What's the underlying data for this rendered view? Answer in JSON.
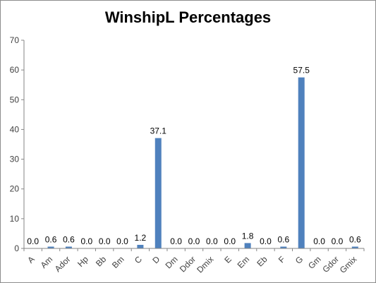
{
  "chart_data": {
    "type": "bar",
    "title": "WinshipL Percentages",
    "categories": [
      "A",
      "Am",
      "Ador",
      "Hp",
      "Bb",
      "Bm",
      "C",
      "D",
      "Dm",
      "Ddor",
      "Dmix",
      "E",
      "Em",
      "Eb",
      "F",
      "G",
      "Gm",
      "Gdor",
      "Gmix"
    ],
    "values": [
      0.0,
      0.6,
      0.6,
      0.0,
      0.0,
      0.0,
      1.2,
      37.1,
      0.0,
      0.0,
      0.0,
      0.0,
      1.8,
      0.0,
      0.6,
      57.5,
      0.0,
      0.0,
      0.6
    ],
    "data_labels": [
      "0.0",
      "0.6",
      "0.6",
      "0.0",
      "0.0",
      "0.0",
      "1.2",
      "37.1",
      "0.0",
      "0.0",
      "0.0",
      "0.0",
      "1.8",
      "0.0",
      "0.6",
      "57.5",
      "0.0",
      "0.0",
      "0.6"
    ],
    "ylim": [
      0,
      70
    ],
    "yticks": [
      0,
      10,
      20,
      30,
      40,
      50,
      60,
      70
    ],
    "grid": false,
    "legend": "none",
    "bar_color": "#4f81bd",
    "axis_color": "#868686"
  }
}
